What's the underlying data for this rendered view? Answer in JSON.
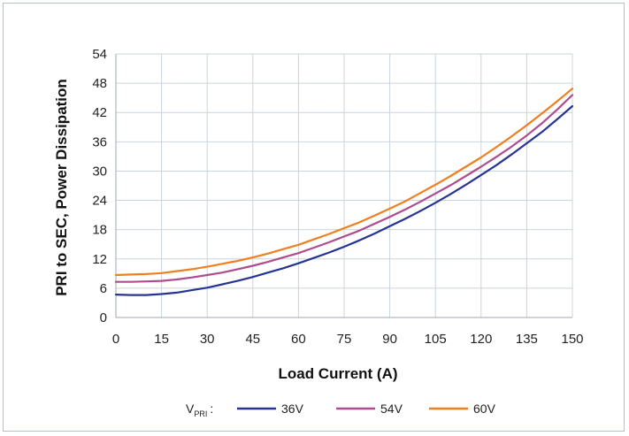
{
  "chart_data": {
    "type": "line",
    "xlabel": "Load Current (A)",
    "ylabel": "PRI to SEC, Power Dissipation",
    "xlim": [
      0,
      150
    ],
    "ylim": [
      0,
      54
    ],
    "xticks": [
      0,
      15,
      30,
      45,
      60,
      75,
      90,
      105,
      120,
      135,
      150
    ],
    "yticks": [
      0,
      6,
      12,
      18,
      24,
      30,
      36,
      42,
      48,
      54
    ],
    "grid": true,
    "legend": {
      "position": "bottom",
      "prefix": "V",
      "prefix_subscript": "PRI",
      "prefix_suffix": ":"
    },
    "series": [
      {
        "name": "36V",
        "color": "#253494",
        "x": [
          0,
          5,
          10,
          15,
          20,
          25,
          30,
          35,
          40,
          45,
          50,
          55,
          60,
          65,
          70,
          75,
          80,
          85,
          90,
          95,
          100,
          105,
          110,
          115,
          120,
          125,
          130,
          135,
          140,
          145,
          150
        ],
        "y": [
          4.7,
          4.6,
          4.6,
          4.8,
          5.1,
          5.6,
          6.1,
          6.8,
          7.5,
          8.3,
          9.2,
          10.1,
          11.1,
          12.2,
          13.3,
          14.5,
          15.8,
          17.2,
          18.7,
          20.2,
          21.8,
          23.5,
          25.3,
          27.2,
          29.2,
          31.2,
          33.4,
          35.7,
          38.0,
          40.6,
          43.3
        ]
      },
      {
        "name": "54V",
        "color": "#ae4c8f",
        "x": [
          0,
          5,
          10,
          15,
          20,
          25,
          30,
          35,
          40,
          45,
          50,
          55,
          60,
          65,
          70,
          75,
          80,
          85,
          90,
          95,
          100,
          105,
          110,
          115,
          120,
          125,
          130,
          135,
          140,
          145,
          150
        ],
        "y": [
          7.3,
          7.3,
          7.4,
          7.5,
          7.8,
          8.2,
          8.7,
          9.2,
          9.9,
          10.6,
          11.4,
          12.3,
          13.2,
          14.3,
          15.4,
          16.6,
          17.8,
          19.2,
          20.6,
          22.1,
          23.7,
          25.4,
          27.1,
          29.0,
          30.9,
          32.9,
          35.0,
          37.3,
          39.8,
          42.6,
          45.6
        ]
      },
      {
        "name": "60V",
        "color": "#f07f1f",
        "x": [
          0,
          5,
          10,
          15,
          20,
          25,
          30,
          35,
          40,
          45,
          50,
          55,
          60,
          65,
          70,
          75,
          80,
          85,
          90,
          95,
          100,
          105,
          110,
          115,
          120,
          125,
          130,
          135,
          140,
          145,
          150
        ],
        "y": [
          8.7,
          8.8,
          8.9,
          9.1,
          9.5,
          9.9,
          10.4,
          11.0,
          11.6,
          12.3,
          13.1,
          14.0,
          14.9,
          16.0,
          17.1,
          18.3,
          19.5,
          20.9,
          22.3,
          23.8,
          25.5,
          27.2,
          29.0,
          30.9,
          32.8,
          34.9,
          37.1,
          39.4,
          41.8,
          44.3,
          46.9
        ]
      }
    ]
  }
}
